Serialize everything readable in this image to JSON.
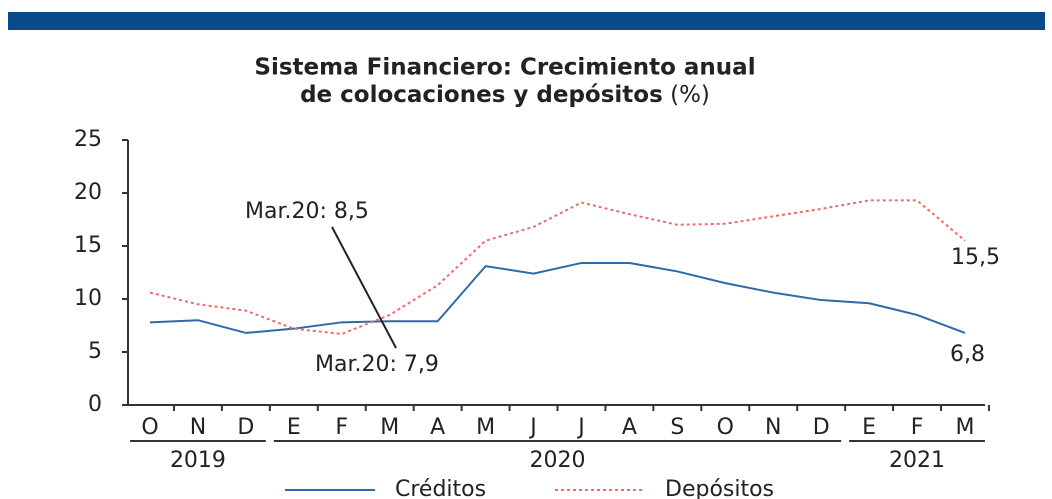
{
  "chart_data": {
    "type": "line",
    "title": [
      "Sistema Financiero: Crecimiento anual",
      "de colocaciones y depósitos"
    ],
    "title_unit": "(%)",
    "categories": [
      "O",
      "N",
      "D",
      "E",
      "F",
      "M",
      "A",
      "M",
      "J",
      "J",
      "A",
      "S",
      "O",
      "N",
      "D",
      "E",
      "F",
      "M"
    ],
    "years": [
      "2019",
      "2020",
      "2021"
    ],
    "series": [
      {
        "name": "Créditos",
        "color": "#2e6aa8",
        "values": [
          7.8,
          8.0,
          6.8,
          7.2,
          7.8,
          7.9,
          7.9,
          13.1,
          12.4,
          13.4,
          13.4,
          12.6,
          11.5,
          10.6,
          9.9,
          9.6,
          8.5,
          6.8
        ]
      },
      {
        "name": "Depósitos",
        "color": "#f26b6b",
        "values": [
          10.6,
          9.5,
          8.9,
          7.2,
          6.7,
          8.5,
          11.3,
          15.5,
          16.8,
          19.1,
          18.0,
          17.0,
          17.1,
          17.8,
          18.5,
          19.3,
          19.3,
          15.5
        ]
      }
    ],
    "annotations": [
      "Mar.20: 8,5",
      "Mar.20: 7,9",
      "15,5",
      "6,8"
    ],
    "ylim": [
      0,
      25
    ],
    "yticks": [
      0,
      5,
      10,
      15,
      20,
      25
    ]
  }
}
